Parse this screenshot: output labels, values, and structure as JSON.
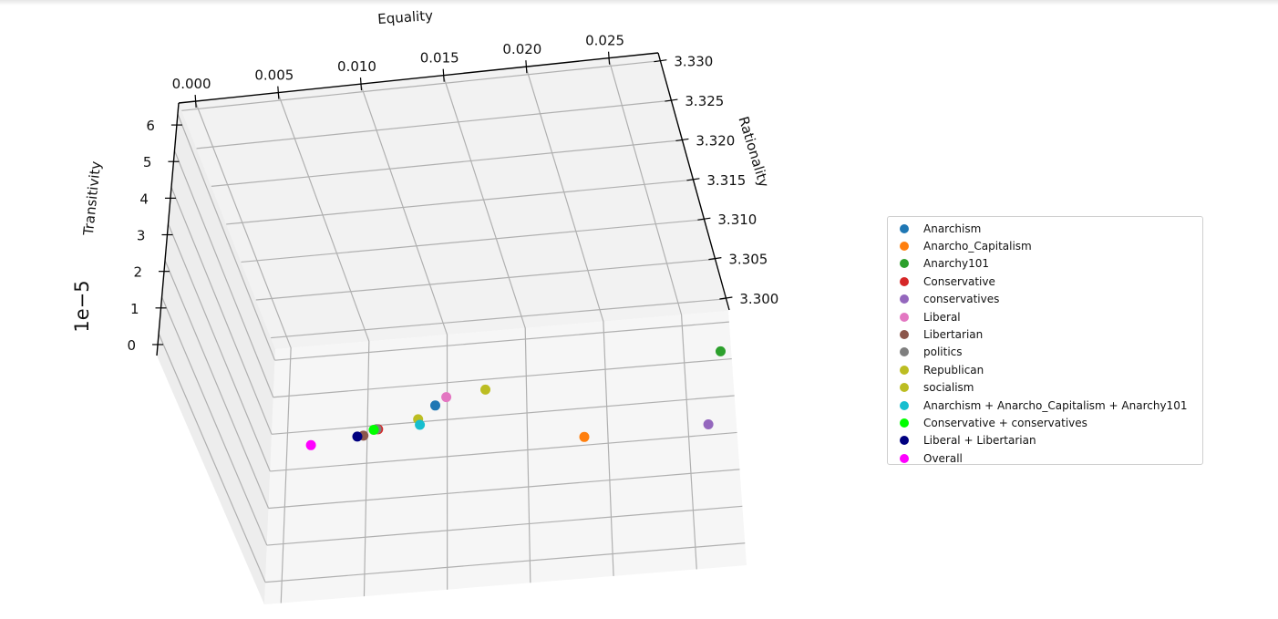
{
  "chart_data": {
    "type": "scatter",
    "projection": "3d",
    "xlabel": "Equality",
    "ylabel": "Rationality",
    "zlabel": "Transitivity",
    "z_offset_label": "1e−5",
    "x_ticks": [
      "0.000",
      "0.005",
      "0.010",
      "0.015",
      "0.020",
      "0.025"
    ],
    "y_ticks": [
      "3.300",
      "3.305",
      "3.310",
      "3.315",
      "3.320",
      "3.325",
      "3.330"
    ],
    "z_ticks": [
      "0",
      "1",
      "2",
      "3",
      "4",
      "5",
      "6"
    ],
    "xlim": [
      -0.001,
      0.028
    ],
    "ylim": [
      3.2985,
      3.331
    ],
    "zlim": [
      -0.3,
      6.6
    ],
    "grid": true,
    "legend_position": "right",
    "series": [
      {
        "name": "Anarchism",
        "color": "#1f77b4",
        "x": 0.0085,
        "y": 3.3115,
        "z": 0.1
      },
      {
        "name": "Anarcho_Capitalism",
        "color": "#ff7f0e",
        "x": 0.0178,
        "y": 3.3025,
        "z": 1.3
      },
      {
        "name": "Anarchy101",
        "color": "#2ca02c",
        "x": 0.0272,
        "y": 3.3212,
        "z": 0.3
      },
      {
        "name": "Conservative",
        "color": "#d62728",
        "x": 0.0046,
        "y": 3.3062,
        "z": 0.2
      },
      {
        "name": "conservatives",
        "color": "#9467bd",
        "x": 0.026,
        "y": 3.3078,
        "z": 2.6
      },
      {
        "name": "Liberal",
        "color": "#e377c2",
        "x": 0.0094,
        "y": 3.3165,
        "z": 0.9
      },
      {
        "name": "Libertarian",
        "color": "#8c564b",
        "x": 0.0036,
        "y": 3.305,
        "z": 0.3
      },
      {
        "name": "politics",
        "color": "#7f7f7f",
        "x": 0.0045,
        "y": 3.3063,
        "z": 0.2
      },
      {
        "name": "Republican",
        "color": "#bcbd22",
        "x": 0.012,
        "y": 3.3188,
        "z": 1.2
      },
      {
        "name": "socialism",
        "color": "#bcbd22",
        "x": 0.0073,
        "y": 3.3092,
        "z": 0.5
      },
      {
        "name": "Anarchism + Anarcho_Capitalism + Anarchy101",
        "color": "#17becf",
        "x": 0.0074,
        "y": 3.3089,
        "z": 0.9
      },
      {
        "name": "Conservative + conservatives",
        "color": "#00ff00",
        "x": 0.0043,
        "y": 3.3058,
        "z": 0.1
      },
      {
        "name": "Liberal + Libertarian",
        "color": "#000080",
        "x": 0.0032,
        "y": 3.3049,
        "z": 0.3
      },
      {
        "name": "Overall",
        "color": "#ff00ff",
        "x": 0.0001,
        "y": 3.3025,
        "z": 0.0
      }
    ]
  }
}
